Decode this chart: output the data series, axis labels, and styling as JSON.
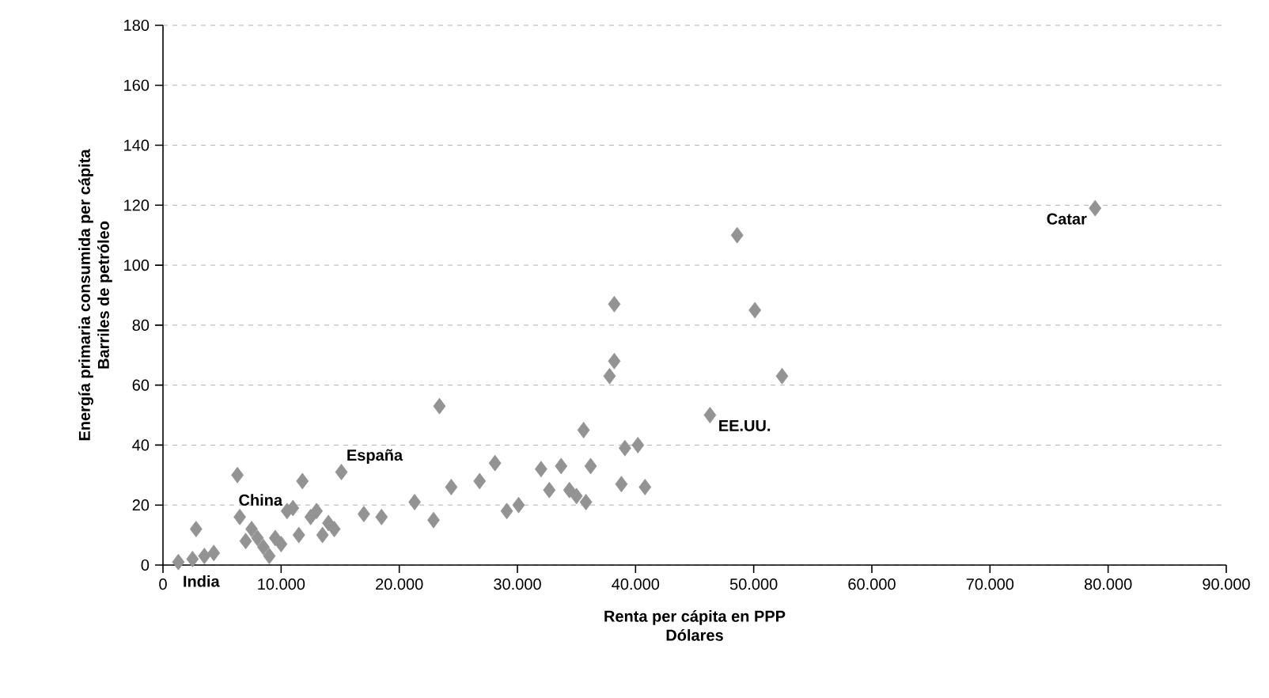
{
  "chart_data": {
    "type": "scatter",
    "xlabel": [
      "Renta per cápita en PPP",
      "Dólares"
    ],
    "ylabel": [
      "Energía primaria consumida per cápita",
      "Barriles de petróleo"
    ],
    "x": [
      1300,
      2500,
      2800,
      3500,
      4300,
      6300,
      6500,
      7000,
      7500,
      8000,
      8500,
      9000,
      9500,
      10000,
      10500,
      11000,
      11500,
      11800,
      12500,
      13000,
      13500,
      14000,
      14500,
      15100,
      17000,
      18500,
      21300,
      22900,
      23400,
      24400,
      26800,
      28100,
      29100,
      30100,
      32000,
      32700,
      33700,
      34400,
      35000,
      35800,
      35600,
      36200,
      37800,
      38200,
      38200,
      38800,
      39100,
      40200,
      40800,
      46300,
      48600,
      50100,
      52400,
      78900
    ],
    "values": [
      1,
      2,
      12,
      3,
      4,
      30,
      16,
      8,
      12,
      9,
      6,
      3,
      9,
      7,
      18,
      19,
      10,
      28,
      16,
      18,
      10,
      14,
      12,
      31,
      17,
      16,
      21,
      15,
      53,
      26,
      28,
      34,
      18,
      20,
      32,
      25,
      33,
      25,
      23,
      21,
      45,
      33,
      63,
      68,
      87,
      27,
      39,
      40,
      26,
      50,
      110,
      85,
      63,
      119
    ],
    "color": "#939393",
    "marker": "diamond",
    "xlim": [
      0,
      90000
    ],
    "ylim": [
      0,
      180
    ],
    "xticks": [
      0,
      {
        "value": 10000,
        "label": "10.000"
      },
      {
        "value": 20000,
        "label": "20.000"
      },
      {
        "value": 30000,
        "label": "30.000"
      },
      {
        "value": 40000,
        "label": "40.000"
      },
      {
        "value": 50000,
        "label": "50.000"
      },
      {
        "value": 60000,
        "label": "60.000"
      },
      {
        "value": 70000,
        "label": "70.000"
      },
      {
        "value": 80000,
        "label": "80.000"
      },
      {
        "value": 90000,
        "label": "90.000"
      }
    ],
    "yticks": [
      0,
      20,
      40,
      60,
      80,
      100,
      120,
      140,
      160,
      180
    ],
    "grid": "y",
    "annotations": [
      {
        "text": "Catar",
        "x": 78900,
        "y": 119
      },
      {
        "text": "EE.UU.",
        "x": 46300,
        "y": 50
      },
      {
        "text": "España",
        "x": 15100,
        "y": 31
      },
      {
        "text": "China",
        "x": 6500,
        "y": 16
      },
      {
        "text": "India",
        "x": 3500,
        "y": 3
      }
    ]
  }
}
